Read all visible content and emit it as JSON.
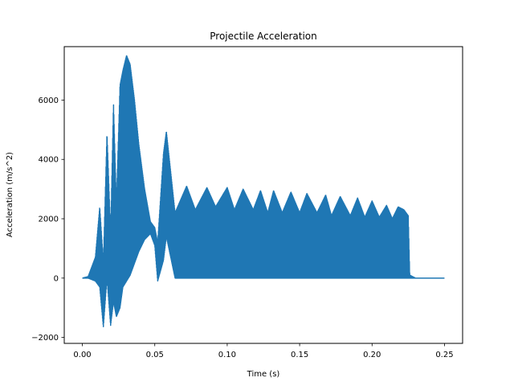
{
  "chart_data": {
    "type": "line",
    "title": "Projectile Acceleration",
    "xlabel": "Time (s)",
    "ylabel": "Acceleration (m/s^2)",
    "xlim": [
      -0.0125,
      0.2625
    ],
    "ylim": [
      -2200,
      7800
    ],
    "xticks": [
      0.0,
      0.05,
      0.1,
      0.15,
      0.2,
      0.25
    ],
    "xtick_labels": [
      "0.00",
      "0.05",
      "0.10",
      "0.15",
      "0.20",
      "0.25"
    ],
    "yticks": [
      -2000,
      0,
      2000,
      4000,
      6000
    ],
    "ytick_labels": [
      "−2000",
      "0",
      "2000",
      "4000",
      "6000"
    ],
    "grid": false,
    "series": [
      {
        "color": "#1f77b4",
        "envelope_points": {
          "x": [
            0.0,
            0.004,
            0.009,
            0.012,
            0.0145,
            0.017,
            0.0195,
            0.0215,
            0.0235,
            0.026,
            0.028,
            0.0305,
            0.033,
            0.036,
            0.039,
            0.043,
            0.047,
            0.05,
            0.052,
            0.056,
            0.058,
            0.064,
            0.072,
            0.078,
            0.086,
            0.092,
            0.1,
            0.105,
            0.111,
            0.118,
            0.123,
            0.128,
            0.132,
            0.138,
            0.144,
            0.15,
            0.155,
            0.162,
            0.168,
            0.172,
            0.178,
            0.185,
            0.19,
            0.195,
            0.2,
            0.205,
            0.21,
            0.214,
            0.218,
            0.222,
            0.225,
            0.226,
            0.23,
            0.25
          ],
          "upper": [
            0,
            50,
            700,
            2400,
            500,
            4900,
            1500,
            5900,
            2500,
            6500,
            7000,
            7500,
            7200,
            6000,
            4500,
            3000,
            1900,
            1700,
            1200,
            4200,
            4950,
            2200,
            3100,
            2300,
            3050,
            2400,
            3050,
            2300,
            3000,
            2300,
            2950,
            2200,
            2950,
            2200,
            2900,
            2200,
            2850,
            2200,
            2800,
            2100,
            2750,
            2100,
            2700,
            2050,
            2600,
            2050,
            2450,
            2000,
            2400,
            2300,
            2100,
            100,
            0,
            0
          ],
          "lower": [
            0,
            0,
            -100,
            -300,
            -1650,
            0,
            -1600,
            -800,
            -1300,
            -1000,
            -300,
            -100,
            100,
            500,
            900,
            1300,
            1500,
            1100,
            -100,
            600,
            1400,
            0,
            0,
            0,
            0,
            0,
            0,
            0,
            0,
            0,
            0,
            0,
            0,
            0,
            0,
            0,
            0,
            0,
            0,
            0,
            0,
            0,
            0,
            0,
            0,
            0,
            0,
            0,
            0,
            0,
            0,
            0,
            0,
            0
          ]
        }
      }
    ]
  }
}
